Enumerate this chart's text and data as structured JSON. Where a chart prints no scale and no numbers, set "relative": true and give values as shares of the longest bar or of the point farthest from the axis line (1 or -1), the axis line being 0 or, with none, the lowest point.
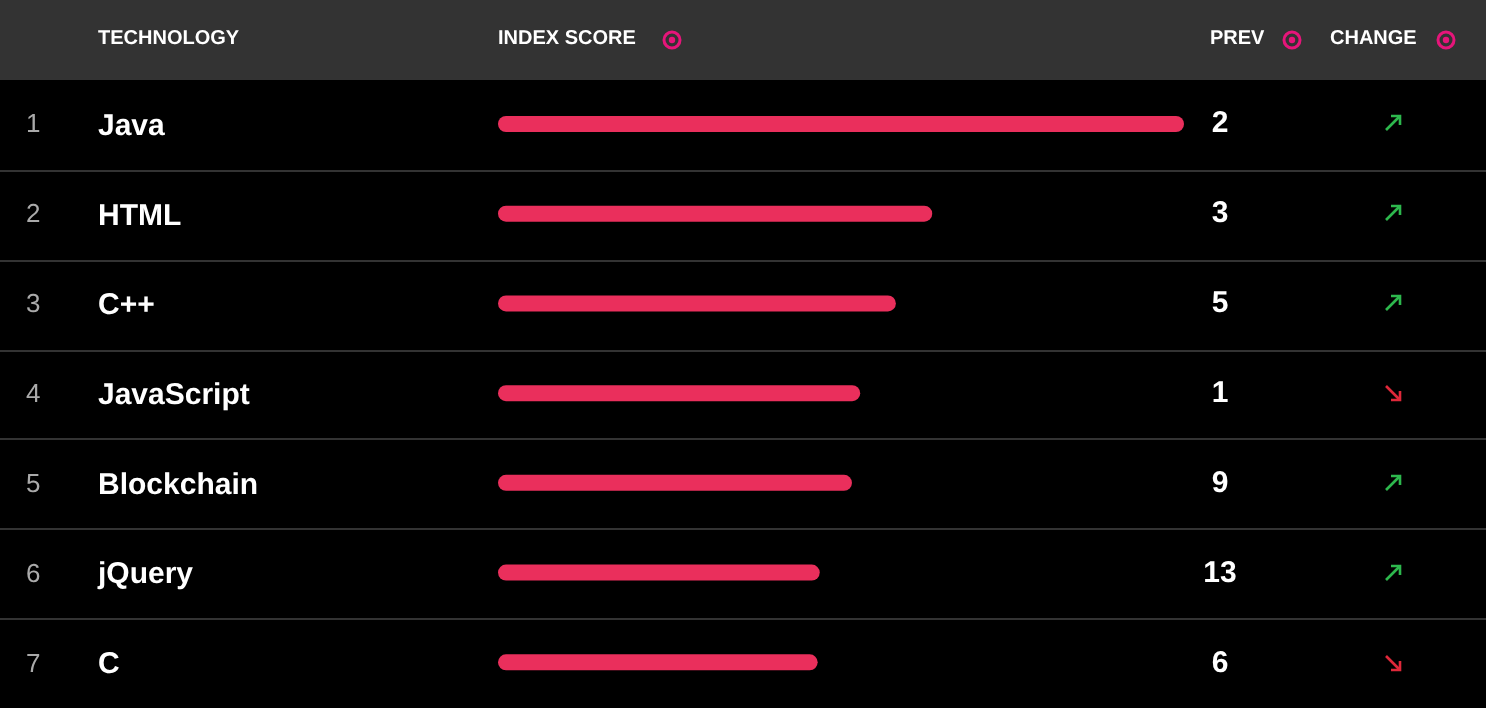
{
  "chart_data": {
    "type": "bar",
    "orientation": "horizontal",
    "relative": true,
    "ylabel": "TECHNOLOGY",
    "xlabel": "INDEX SCORE",
    "categories": [
      "Java",
      "HTML",
      "C++",
      "JavaScript",
      "Blockchain",
      "jQuery",
      "C"
    ],
    "values": [
      1,
      0.633,
      0.58,
      0.528,
      0.516,
      0.469,
      0.466
    ],
    "color": "#ea2f5c",
    "annotations": [
      "PREV",
      "CHANGE",
      "1",
      "2",
      "3",
      "4",
      "5",
      "6",
      "7",
      "2",
      "3",
      "5",
      "1",
      "9",
      "13",
      "6"
    ]
  }
}
